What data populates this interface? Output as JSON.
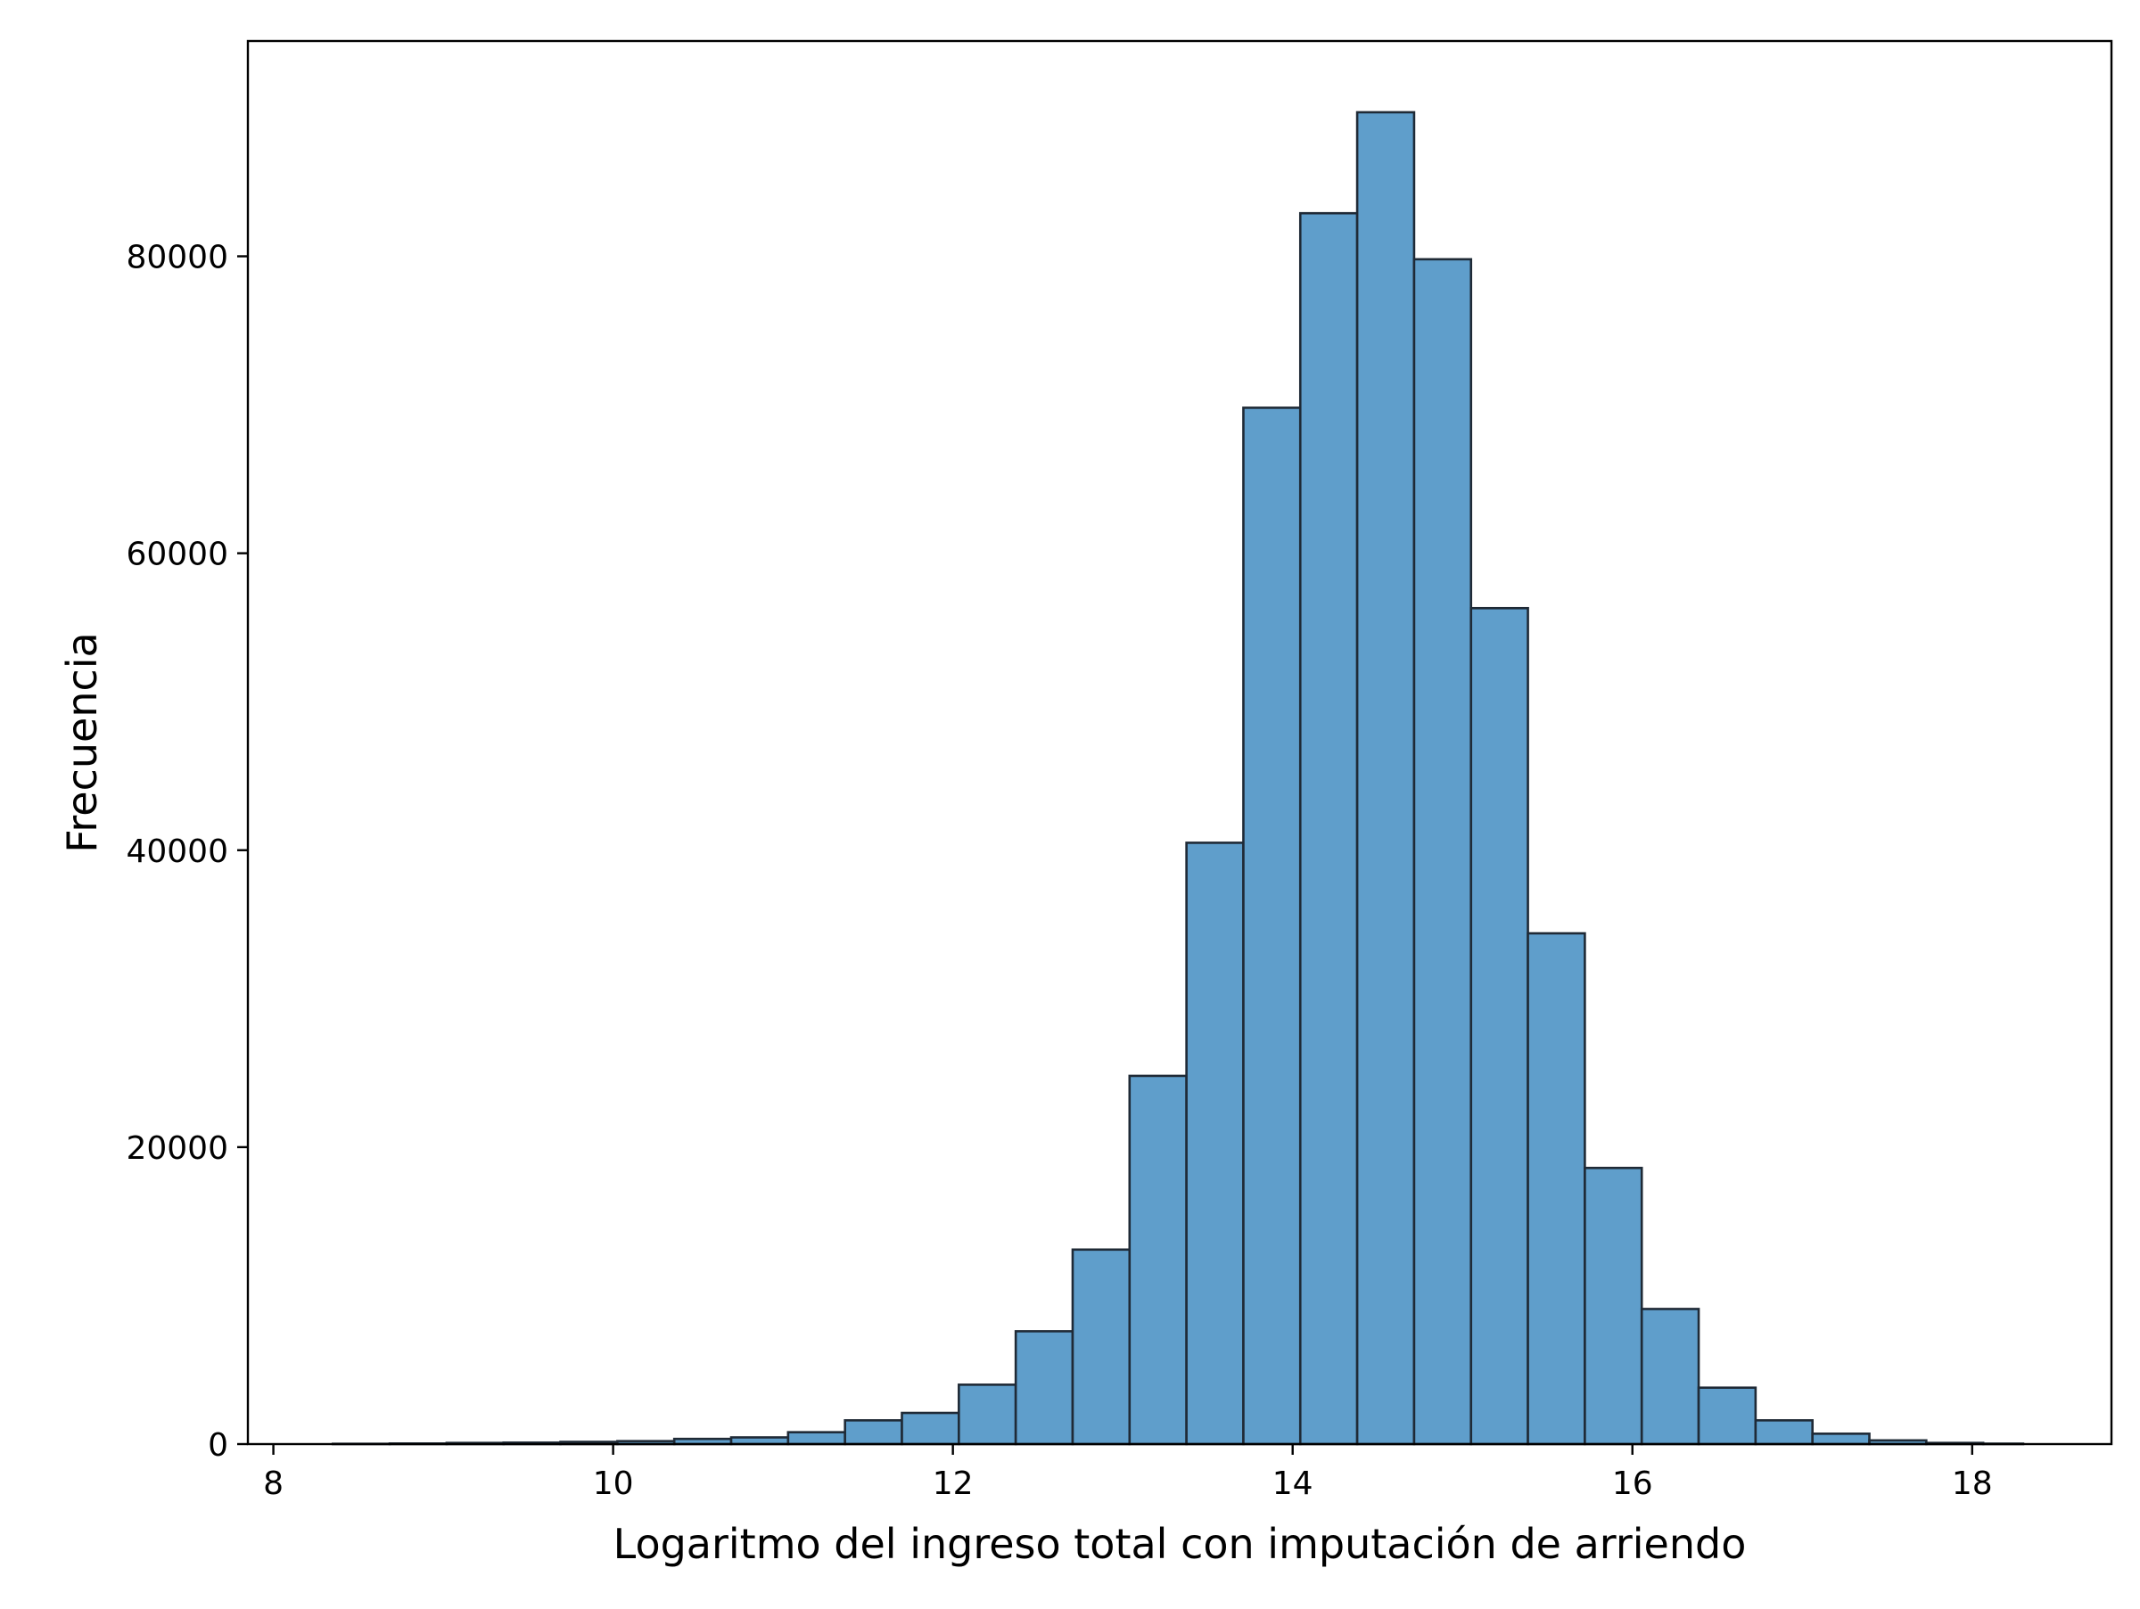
{
  "chart_data": {
    "type": "bar",
    "title": "",
    "xlabel": "Logaritmo del ingreso total con imputación de arriendo",
    "ylabel": "Frecuencia",
    "xlim": [
      7.85,
      18.82
    ],
    "ylim": [
      0,
      94500
    ],
    "xticks": [
      8,
      10,
      12,
      14,
      16,
      18
    ],
    "yticks": [
      0,
      20000,
      40000,
      60000,
      80000
    ],
    "bin_edges": [
      8.35,
      8.685,
      9.02,
      9.355,
      9.69,
      10.025,
      10.36,
      10.695,
      11.03,
      11.365,
      11.7,
      12.035,
      12.37,
      12.705,
      13.04,
      13.375,
      13.71,
      14.045,
      14.38,
      14.715,
      15.05,
      15.385,
      15.72,
      16.055,
      16.39,
      16.725,
      17.06,
      17.395,
      17.73,
      18.065,
      18.3
    ],
    "values": [
      20,
      40,
      80,
      100,
      150,
      200,
      350,
      450,
      800,
      1600,
      2100,
      4000,
      7600,
      13100,
      24800,
      40500,
      69800,
      82900,
      89700,
      79800,
      56300,
      34400,
      18600,
      9100,
      3800,
      1600,
      700,
      250,
      80,
      30
    ],
    "grid": false,
    "legend": "none",
    "colors": {
      "bar_fill": "#5f9ecb",
      "bar_edge": "#1f2a36",
      "axis": "#000000"
    }
  }
}
